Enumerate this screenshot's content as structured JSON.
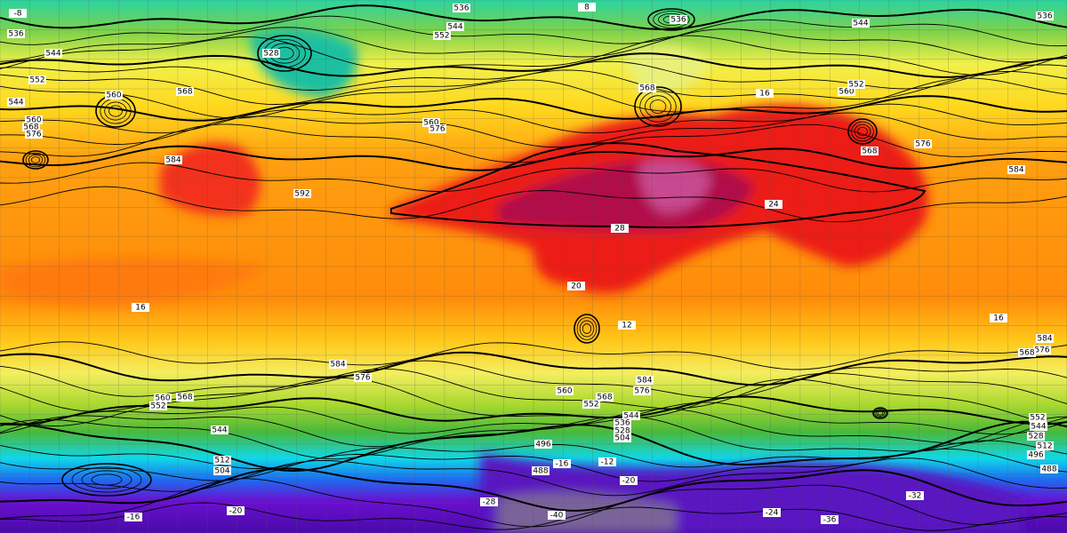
{
  "map": {
    "height_labels": [
      "536",
      "544",
      "552",
      "536",
      "544",
      "536",
      "536",
      "544",
      "552",
      "560",
      "568",
      "544",
      "560",
      "568",
      "576",
      "528",
      "560",
      "576",
      "568",
      "560",
      "552",
      "568",
      "576",
      "584",
      "584",
      "592",
      "584",
      "576",
      "560",
      "568",
      "552",
      "544",
      "584",
      "576",
      "568",
      "560",
      "552",
      "544",
      "536",
      "528",
      "504",
      "496",
      "488",
      "584",
      "576",
      "568",
      "552",
      "544",
      "528",
      "512",
      "496",
      "488",
      "512",
      "504"
    ],
    "temperature_labels": [
      "8",
      "-8",
      "16",
      "24",
      "28",
      "20",
      "16",
      "16",
      "12",
      "-16",
      "-12",
      "-20",
      "-28",
      "-32",
      "-36",
      "-40",
      "-24",
      "-20",
      "-16"
    ]
  }
}
